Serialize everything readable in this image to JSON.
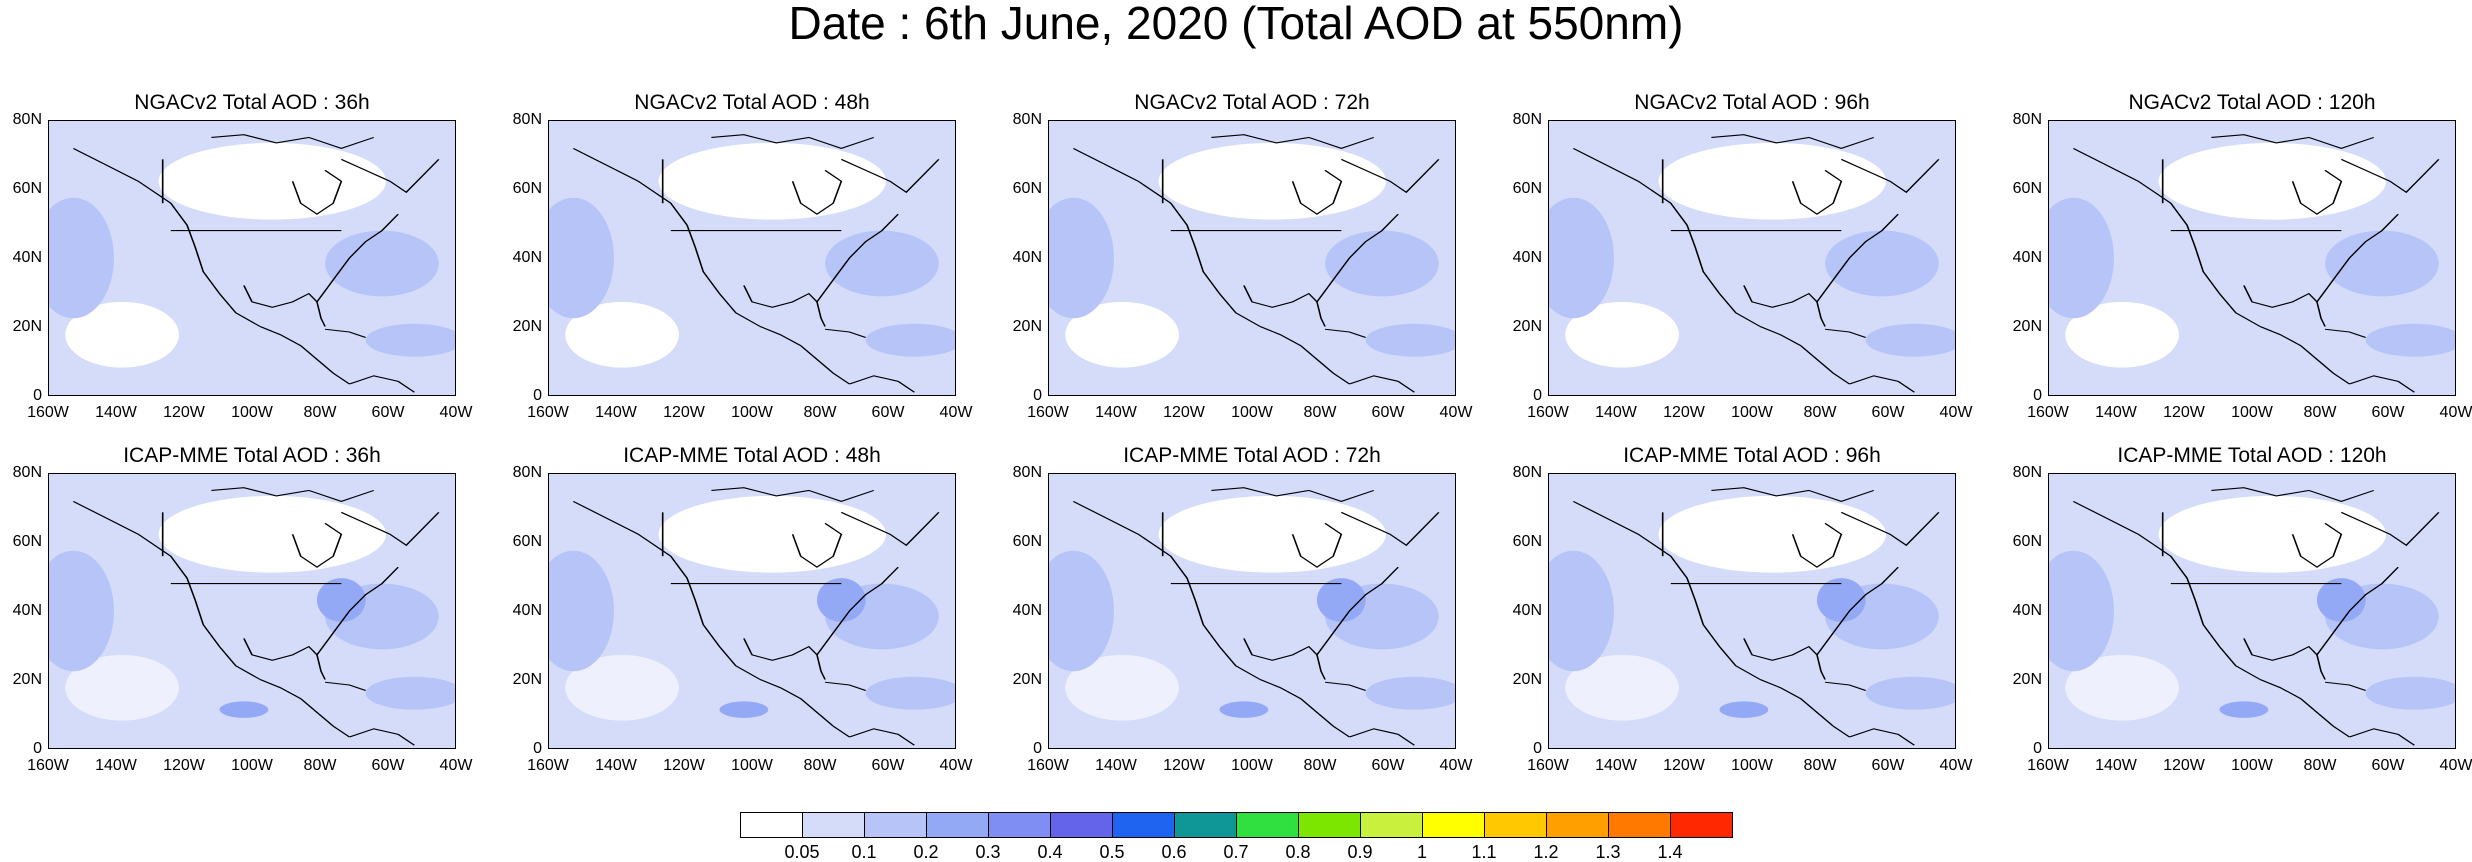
{
  "title": "Date : 6th June, 2020 (Total AOD at 550nm)",
  "panel_rows": [
    {
      "model": "NGACv2",
      "panels": [
        {
          "title": "NGACv2 Total AOD : 36h"
        },
        {
          "title": "NGACv2 Total AOD : 48h"
        },
        {
          "title": "NGACv2 Total AOD : 72h"
        },
        {
          "title": "NGACv2 Total AOD : 96h"
        },
        {
          "title": "NGACv2 Total AOD : 120h"
        }
      ]
    },
    {
      "model": "ICAP-MME",
      "panels": [
        {
          "title": "ICAP-MME Total AOD : 36h"
        },
        {
          "title": "ICAP-MME Total AOD : 48h"
        },
        {
          "title": "ICAP-MME Total AOD : 72h"
        },
        {
          "title": "ICAP-MME Total AOD : 96h"
        },
        {
          "title": "ICAP-MME Total AOD : 120h"
        }
      ]
    }
  ],
  "lat_ticks": [
    "80N",
    "60N",
    "40N",
    "20N",
    "0"
  ],
  "lon_ticks": [
    "160W",
    "140W",
    "120W",
    "100W",
    "80W",
    "60W",
    "40W"
  ],
  "colorbar": {
    "labels": [
      "0.05",
      "0.1",
      "0.2",
      "0.3",
      "0.4",
      "0.5",
      "0.6",
      "0.7",
      "0.8",
      "0.9",
      "1",
      "1.1",
      "1.2",
      "1.3",
      "1.4"
    ],
    "colors": [
      "#ffffff",
      "#d4dcfa",
      "#b6c4f8",
      "#93a9f5",
      "#7f8ef2",
      "#6464ea",
      "#1e64f0",
      "#0f9696",
      "#30e040",
      "#7ce600",
      "#c8f03c",
      "#ffff00",
      "#ffc800",
      "#ffa000",
      "#ff7800",
      "#ff2800"
    ]
  },
  "map_colors": {
    "low": "#d4dcfa",
    "mid": "#b6c4f8",
    "high": "#93a9f5"
  }
}
